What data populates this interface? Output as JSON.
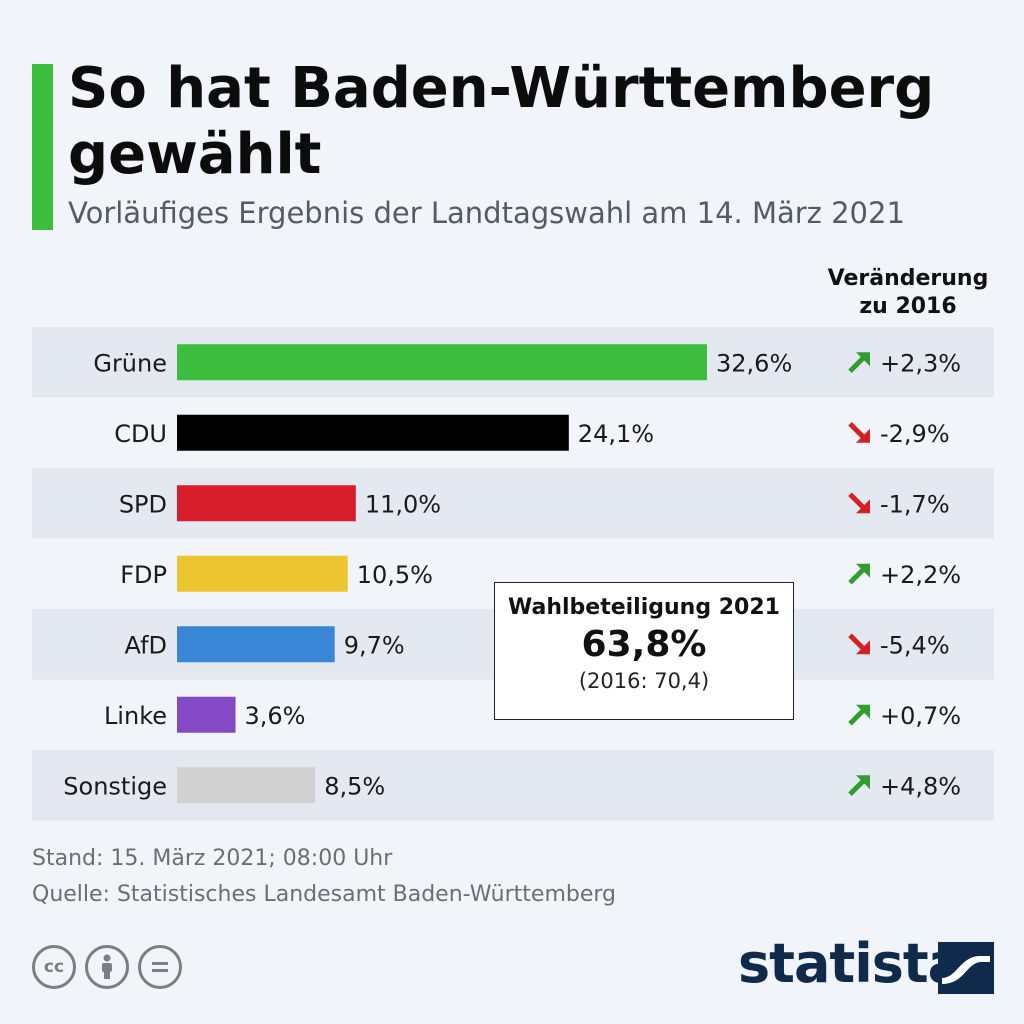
{
  "header": {
    "title": "So hat Baden-Württemberg gewählt",
    "subtitle": "Vorläufiges Ergebnis der Landtagswahl am 14. März 2021"
  },
  "change_header": [
    "Veränderung",
    "zu 2016"
  ],
  "turnout": {
    "label": "Wahlbeteiligung 2021",
    "value": "63,8%",
    "previous": "(2016: 70,4)"
  },
  "footer": {
    "stand": "Stand: 15. März 2021; 08:00 Uhr",
    "source": "Quelle: Statistisches Landesamt Baden-Württemberg",
    "brand": "statista",
    "license_icons": [
      "cc-icon",
      "attribution-icon",
      "no-derivatives-icon"
    ]
  },
  "colors": {
    "accent": "#3dbd3d",
    "up": "#2f9e2f",
    "down": "#d42020",
    "row_shade": "#e4e9f1"
  },
  "chart_data": {
    "type": "bar",
    "orientation": "horizontal",
    "categories": [
      "Grüne",
      "CDU",
      "SPD",
      "FDP",
      "AfD",
      "Linke",
      "Sonstige"
    ],
    "values": [
      32.6,
      24.1,
      11.0,
      10.5,
      9.7,
      3.6,
      8.5
    ],
    "value_labels": [
      "32,6%",
      "24,1%",
      "11,0%",
      "10,5%",
      "9,7%",
      "3,6%",
      "8,5%"
    ],
    "bar_colors": [
      "#3dbd3d",
      "#000000",
      "#d81e2a",
      "#ecc530",
      "#3a86d6",
      "#8449c5",
      "#d1d1d1"
    ],
    "changes": [
      2.3,
      -2.9,
      -1.7,
      2.2,
      -5.4,
      0.7,
      4.8
    ],
    "change_labels": [
      "+2,3%",
      "-2,9%",
      "-1,7%",
      "+2,2%",
      "-5,4%",
      "+0,7%",
      "+4,8%"
    ],
    "xlim": [
      0,
      32.6
    ],
    "grid": false
  }
}
